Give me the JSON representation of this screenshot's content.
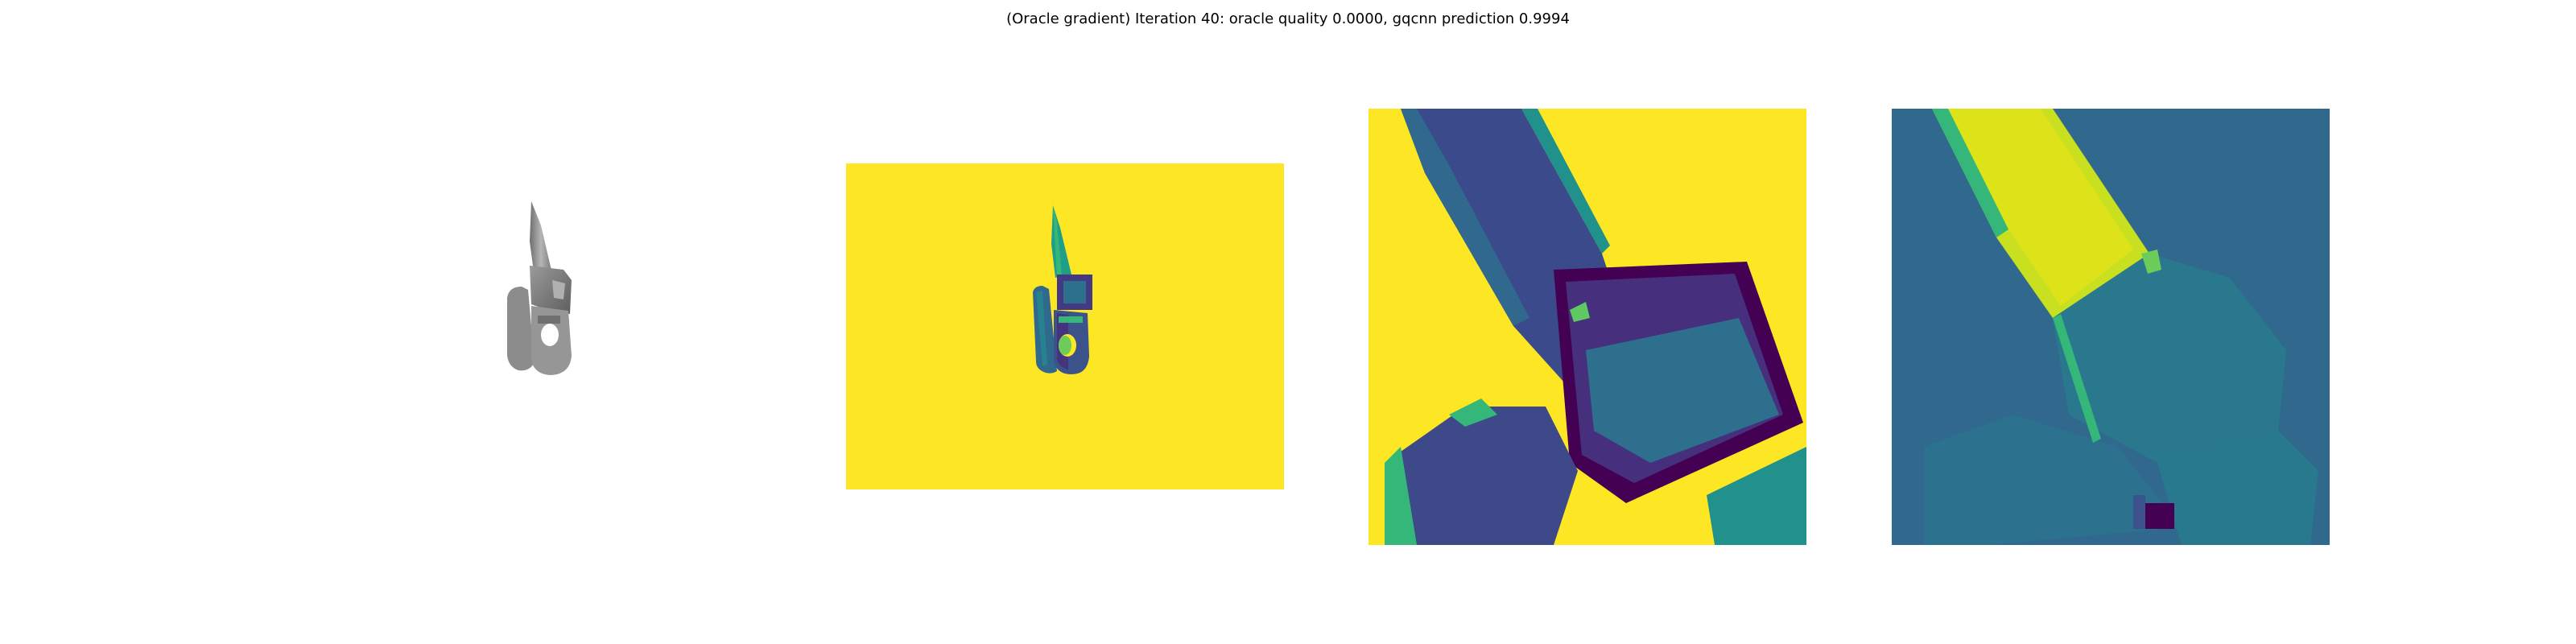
{
  "figure": {
    "title": "(Oracle gradient) Iteration 40: oracle quality 0.0000, gqcnn prediction 0.9994"
  },
  "panels": [
    {
      "id": "rendered-object",
      "content": "grayscale 3D render of object"
    },
    {
      "id": "depth-image",
      "content": "viridis depth image"
    },
    {
      "id": "depth-crop",
      "content": "viridis cropped depth patch"
    },
    {
      "id": "gradient-map",
      "content": "viridis gradient heatmap"
    }
  ],
  "colors": {
    "viridis_yellow": "#fde725",
    "viridis_dark_purple": "#440154",
    "viridis_indigo": "#3b4a8b",
    "viridis_blue": "#31688e",
    "viridis_teal": "#21918c",
    "viridis_green": "#35b779",
    "viridis_lime": "#90d743",
    "object_gray": "#8a8a8a"
  }
}
